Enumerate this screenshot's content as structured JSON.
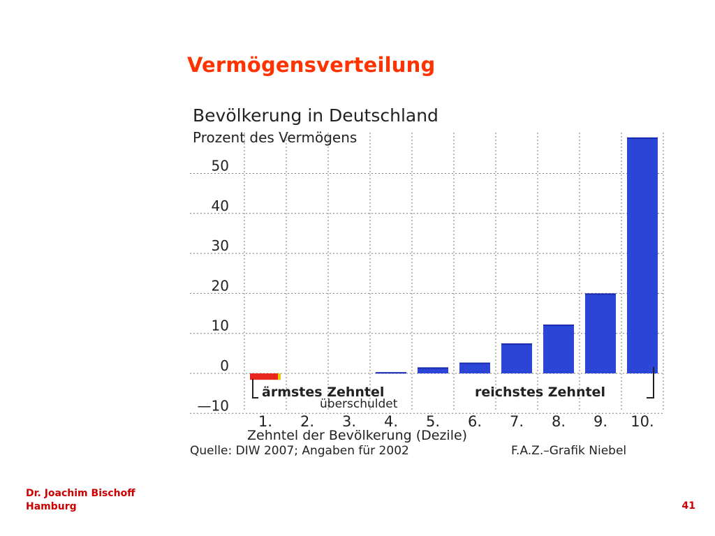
{
  "slide": {
    "title": "Vermögensverteilung",
    "author_line1": "Dr. Joachim Bischoff",
    "author_line2": "Hamburg",
    "page_number": "41"
  },
  "chart_data": {
    "type": "bar",
    "title": "Bevölkerung in Deutschland",
    "subtitle": "Prozent des Vermögens",
    "xlabel": "Zehntel der Bevölkerung (Dezile)",
    "categories": [
      "1.",
      "2.",
      "3.",
      "4.",
      "5.",
      "6.",
      "7.",
      "8.",
      "9.",
      "10."
    ],
    "values": [
      -1.6,
      0,
      0,
      0.3,
      1.5,
      2.7,
      7.5,
      12.2,
      20,
      59
    ],
    "ylim": [
      -10,
      60
    ],
    "yticks": [
      -10,
      0,
      10,
      20,
      30,
      40,
      50
    ],
    "ytick_labels": [
      "—10",
      "0",
      "10",
      "20",
      "30",
      "40",
      "50"
    ],
    "grid": true,
    "annotations": {
      "poorest": "ärmstes Zehntel",
      "indebted": "überschuldet",
      "richest": "reichstes Zehntel"
    },
    "source": "Quelle: DIW 2007; Angaben für 2002",
    "credit": "F.A.Z.–Grafik Niebel",
    "colors": {
      "bar": "#2b45d6",
      "bar_edge": "#1a2bb0",
      "negative_bar": "#e8261c",
      "negative_edge": "#f5c400",
      "grid": "#7a7a7a",
      "text": "#222222"
    }
  }
}
